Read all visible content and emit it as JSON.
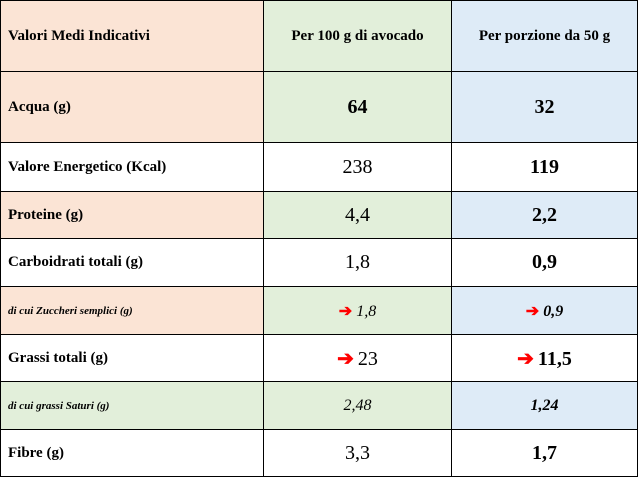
{
  "header": {
    "col1": "Valori Medi Indicativi",
    "col2": "Per 100 g di avocado",
    "col3": "Per porzione da 50 g"
  },
  "rows": [
    {
      "label": "Acqua (g)",
      "per100": "64",
      "portion": "32"
    },
    {
      "label": "Valore Energetico (Kcal)",
      "per100": "238",
      "portion": "119"
    },
    {
      "label": "Proteine (g)",
      "per100": "4,4",
      "portion": "2,2"
    },
    {
      "label": "Carboidrati totali (g)",
      "per100": "1,8",
      "portion": "0,9"
    },
    {
      "label": "di cui Zuccheri semplici (g)",
      "per100": "1,8",
      "portion": "0,9"
    },
    {
      "label": "Grassi totali (g)",
      "per100": "23",
      "portion": "11,5"
    },
    {
      "label": "di cui grassi Saturi (g)",
      "per100": "2,48",
      "portion": "1,24"
    },
    {
      "label": "Fibre (g)",
      "per100": "3,3",
      "portion": "1,7"
    }
  ],
  "arrow_glyph": "➔",
  "colors": {
    "orange": "#fbe4d5",
    "green": "#e2efda",
    "blue": "#deebf7",
    "arrow": "#ff0000"
  }
}
